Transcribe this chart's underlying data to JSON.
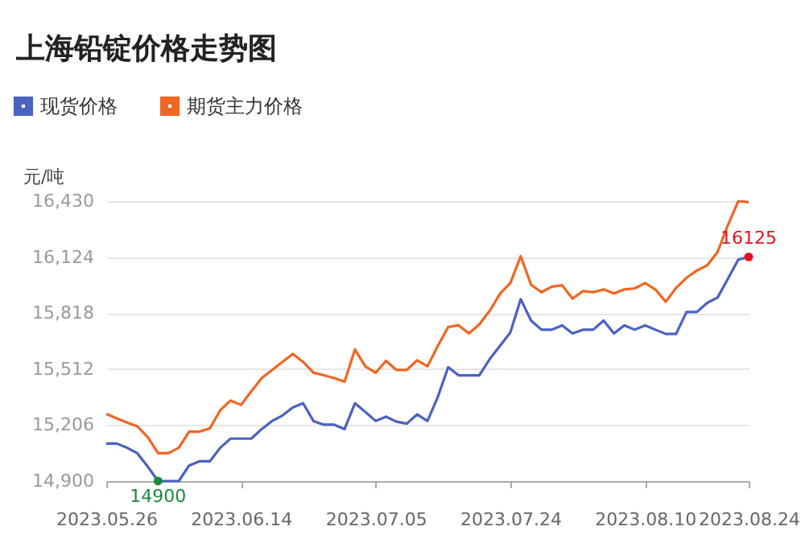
{
  "chart_data": {
    "type": "line",
    "title": "上海铅锭价格走势图",
    "ylabel": "元/吨",
    "categories": [
      "2023.05.26",
      null,
      null,
      null,
      null,
      null,
      null,
      null,
      null,
      null,
      null,
      null,
      null,
      "2023.06.14",
      null,
      null,
      null,
      null,
      null,
      null,
      null,
      null,
      null,
      null,
      null,
      null,
      "2023.07.05",
      null,
      null,
      null,
      null,
      null,
      null,
      null,
      null,
      null,
      null,
      null,
      null,
      "2023.07.24",
      null,
      null,
      null,
      null,
      null,
      null,
      null,
      null,
      null,
      null,
      null,
      null,
      "2023.08.10",
      null,
      null,
      null,
      null,
      null,
      null,
      null,
      null,
      null,
      "2023.08.24"
    ],
    "series": [
      {
        "name": "现货价格",
        "color": "#4a62c0",
        "values": [
          15105,
          15105,
          15082,
          15052,
          14979,
          14900,
          14900,
          14900,
          14985,
          15008,
          15008,
          15082,
          15132,
          15132,
          15132,
          15184,
          15228,
          15258,
          15302,
          15325,
          15228,
          15208,
          15208,
          15184,
          15325,
          15278,
          15228,
          15252,
          15225,
          15214,
          15264,
          15228,
          15360,
          15522,
          15478,
          15478,
          15478,
          15566,
          15639,
          15712,
          15894,
          15777,
          15727,
          15727,
          15751,
          15707,
          15727,
          15727,
          15777,
          15707,
          15751,
          15727,
          15751,
          15727,
          15704,
          15704,
          15824,
          15824,
          15874,
          15903,
          16006,
          16110,
          16125
        ],
        "value_labels": [
          null,
          null,
          null,
          null,
          null,
          "14900",
          null,
          null,
          null,
          null,
          null,
          null,
          null,
          null,
          null,
          null,
          null,
          null,
          null,
          null,
          null,
          null,
          null,
          null,
          null,
          null,
          null,
          null,
          null,
          null,
          null,
          null,
          null,
          null,
          null,
          null,
          null,
          null,
          null,
          null,
          null,
          null,
          null,
          null,
          null,
          null,
          null,
          null,
          null,
          null,
          null,
          null,
          null,
          null,
          null,
          null,
          null,
          null,
          null,
          null,
          null,
          null,
          "16125"
        ]
      },
      {
        "name": "期货主力价格",
        "color": "#f26522",
        "values": [
          15267,
          15243,
          15220,
          15199,
          15140,
          15052,
          15052,
          15082,
          15170,
          15170,
          15188,
          15287,
          15340,
          15316,
          15390,
          15463,
          15507,
          15551,
          15595,
          15551,
          15492,
          15478,
          15463,
          15443,
          15619,
          15527,
          15492,
          15557,
          15507,
          15507,
          15560,
          15527,
          15639,
          15742,
          15751,
          15707,
          15756,
          15830,
          15924,
          15982,
          16129,
          15973,
          15932,
          15962,
          15970,
          15897,
          15938,
          15932,
          15947,
          15926,
          15947,
          15953,
          15982,
          15947,
          15880,
          15956,
          16011,
          16050,
          16079,
          16152,
          16299,
          16430,
          16424
        ]
      }
    ],
    "ylim": [
      14900,
      16430
    ],
    "yticks": [
      {
        "value": 14900,
        "label": "14,900"
      },
      {
        "value": 15206,
        "label": "15,206"
      },
      {
        "value": 15512,
        "label": "15,512"
      },
      {
        "value": 15818,
        "label": "15,818"
      },
      {
        "value": 16124,
        "label": "16,124"
      },
      {
        "value": 16430,
        "label": "16,430"
      }
    ],
    "grid": "y",
    "legend": "top left",
    "marker": "none",
    "line_style": "solid"
  }
}
